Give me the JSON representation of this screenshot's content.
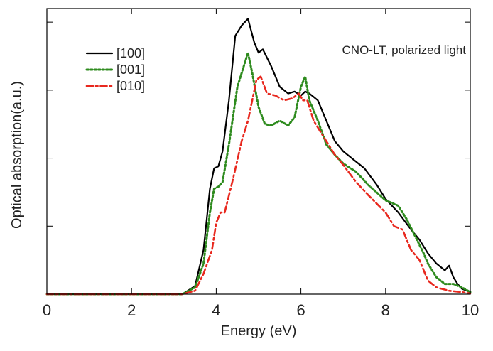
{
  "chart_data": {
    "type": "line",
    "title": "",
    "annotation": "CNO-LT, polarized light",
    "xlabel": "Energy (eV)",
    "ylabel": "Optical absorption(a.u.)",
    "xlim": [
      0,
      10
    ],
    "ylim": [
      0,
      4.2
    ],
    "x_ticks": [
      0,
      2,
      4,
      6,
      8,
      10
    ],
    "x_tick_labels": [
      "0",
      "2",
      "4",
      "6",
      "8",
      "10"
    ],
    "y_ticks": [
      1,
      2,
      3,
      4
    ],
    "y_tick_labels_visible": false,
    "grid": false,
    "legend_position": "top-left",
    "series": [
      {
        "name": "[100]",
        "color": "#000000",
        "style": "solid",
        "x": [
          0,
          3.2,
          3.5,
          3.7,
          3.85,
          3.95,
          4.05,
          4.15,
          4.3,
          4.45,
          4.6,
          4.75,
          4.9,
          5.0,
          5.1,
          5.3,
          5.5,
          5.7,
          5.85,
          6.0,
          6.1,
          6.2,
          6.3,
          6.4,
          6.6,
          6.8,
          7.0,
          7.2,
          7.5,
          7.8,
          8.0,
          8.3,
          8.6,
          8.8,
          9.0,
          9.2,
          9.4,
          9.5,
          9.6,
          9.7,
          9.8,
          10.0
        ],
        "y": [
          0,
          0,
          0.12,
          0.65,
          1.55,
          1.85,
          1.88,
          2.1,
          2.85,
          3.8,
          3.95,
          4.05,
          3.7,
          3.55,
          3.6,
          3.35,
          3.05,
          2.95,
          2.98,
          2.92,
          2.98,
          2.95,
          2.9,
          2.85,
          2.55,
          2.25,
          2.1,
          2.0,
          1.85,
          1.6,
          1.4,
          1.2,
          0.95,
          0.8,
          0.6,
          0.45,
          0.35,
          0.42,
          0.25,
          0.15,
          0.08,
          0.03
        ]
      },
      {
        "name": "[001]",
        "color": "#2e8b1e",
        "style": "dotted",
        "x": [
          0,
          3.2,
          3.5,
          3.7,
          3.85,
          3.95,
          4.05,
          4.15,
          4.3,
          4.5,
          4.65,
          4.75,
          4.85,
          5.0,
          5.15,
          5.3,
          5.5,
          5.7,
          5.85,
          6.0,
          6.1,
          6.2,
          6.4,
          6.6,
          6.8,
          7.0,
          7.3,
          7.6,
          8.0,
          8.3,
          8.5,
          8.7,
          8.9,
          9.0,
          9.2,
          9.4,
          9.6,
          9.8,
          10.0
        ],
        "y": [
          0,
          0,
          0.1,
          0.45,
          1.2,
          1.55,
          1.58,
          1.65,
          2.2,
          3.05,
          3.35,
          3.55,
          3.25,
          2.75,
          2.5,
          2.48,
          2.55,
          2.48,
          2.6,
          3.05,
          3.2,
          2.85,
          2.55,
          2.2,
          2.05,
          1.92,
          1.8,
          1.6,
          1.38,
          1.3,
          1.1,
          0.85,
          0.6,
          0.45,
          0.25,
          0.15,
          0.15,
          0.1,
          0.03
        ]
      },
      {
        "name": "[010]",
        "color": "#e8281e",
        "style": "dashdot",
        "x": [
          0,
          3.2,
          3.5,
          3.7,
          3.9,
          4.0,
          4.1,
          4.2,
          4.4,
          4.6,
          4.75,
          4.85,
          4.95,
          5.05,
          5.2,
          5.4,
          5.6,
          5.8,
          5.95,
          6.05,
          6.15,
          6.3,
          6.5,
          6.8,
          7.0,
          7.3,
          7.6,
          8.0,
          8.2,
          8.4,
          8.6,
          8.8,
          9.0,
          9.2,
          9.5,
          9.8,
          10.0
        ],
        "y": [
          0,
          0,
          0.05,
          0.3,
          0.65,
          1.05,
          1.2,
          1.2,
          1.7,
          2.25,
          2.55,
          2.85,
          3.15,
          3.2,
          2.95,
          2.92,
          2.85,
          2.88,
          2.95,
          2.85,
          2.85,
          2.55,
          2.35,
          2.05,
          1.9,
          1.65,
          1.45,
          1.2,
          1.0,
          0.95,
          0.65,
          0.5,
          0.2,
          0.1,
          0.05,
          0.03,
          0.01
        ]
      }
    ]
  }
}
